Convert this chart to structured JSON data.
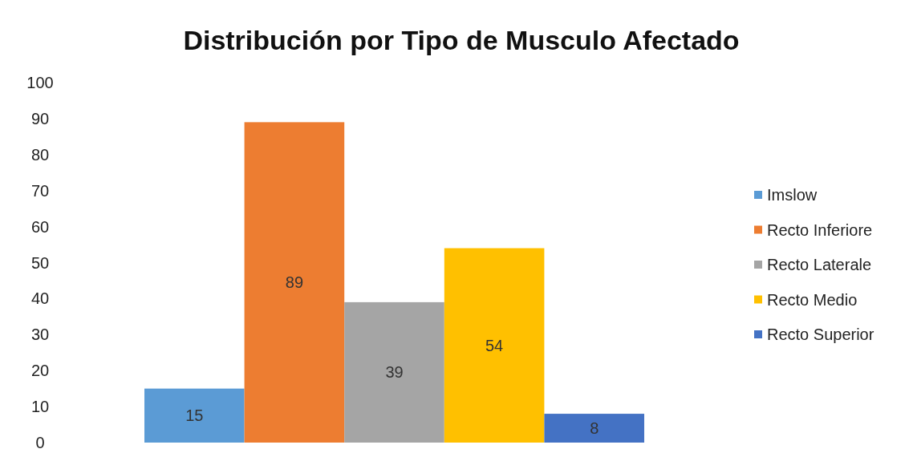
{
  "chart_data": {
    "type": "bar",
    "title": "Distribución por Tipo de Musculo Afectado",
    "categories": [
      null
    ],
    "series": [
      {
        "name": "Imslow",
        "color": "#5b9bd5",
        "values": [
          15
        ]
      },
      {
        "name": "Recto Inferiore",
        "color": "#ed7d31",
        "values": [
          89
        ]
      },
      {
        "name": "Recto Laterale",
        "color": "#a5a5a5",
        "values": [
          39
        ]
      },
      {
        "name": "Recto Medio",
        "color": "#ffc000",
        "values": [
          54
        ]
      },
      {
        "name": "Recto Superior",
        "color": "#4472c4",
        "values": [
          8
        ]
      }
    ],
    "ylim": [
      0,
      100
    ],
    "yticks": [
      0,
      10,
      20,
      30,
      40,
      50,
      60,
      70,
      80,
      90,
      100
    ],
    "grid": false,
    "legend": "right",
    "data_labels": true
  }
}
